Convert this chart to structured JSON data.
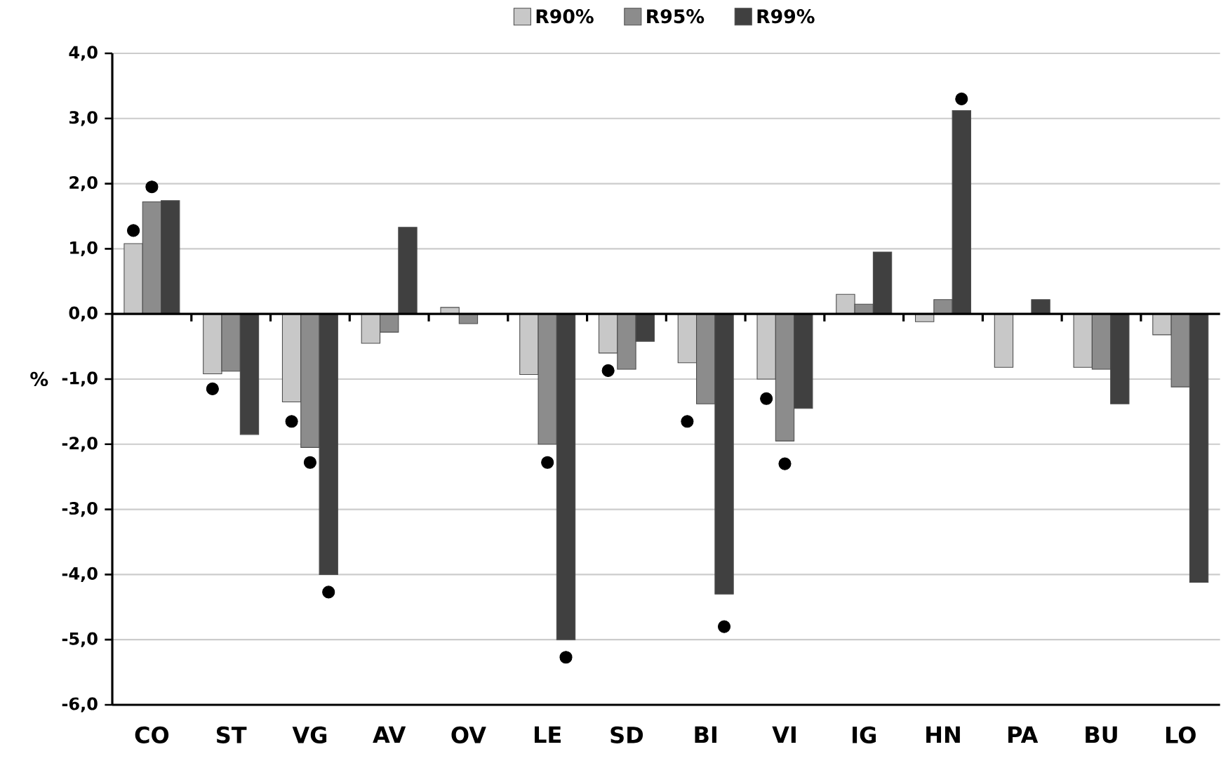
{
  "chart_data": {
    "type": "bar",
    "ylabel": "%",
    "categories": [
      "CO",
      "ST",
      "VG",
      "AV",
      "OV",
      "LE",
      "SD",
      "BI",
      "VI",
      "IG",
      "HN",
      "PA",
      "BU",
      "LO"
    ],
    "series": [
      {
        "name": "R90%",
        "color": "#c8c8c8",
        "values": [
          1.08,
          -0.92,
          -1.35,
          -0.45,
          0.1,
          -0.93,
          -0.6,
          -0.75,
          -1.0,
          0.3,
          -0.12,
          -0.82,
          -0.82,
          -0.32
        ]
      },
      {
        "name": "R95%",
        "color": "#8c8c8c",
        "values": [
          1.72,
          -0.88,
          -2.05,
          -0.28,
          -0.15,
          -2.0,
          -0.85,
          -1.38,
          -1.95,
          0.15,
          0.22,
          null,
          -0.85,
          -1.12
        ]
      },
      {
        "name": "R99%",
        "color": "#404040",
        "values": [
          1.74,
          -1.85,
          -4.0,
          1.33,
          null,
          -5.0,
          -0.42,
          -4.3,
          -1.45,
          0.95,
          3.12,
          0.22,
          -1.38,
          -4.12
        ]
      },
      {
        "type": "scatter",
        "color": "#000000",
        "marker": "circle",
        "values": [
          1.28,
          -1.15,
          -1.65,
          null,
          null,
          null,
          -0.87,
          -1.65,
          -1.3,
          null,
          null,
          null,
          null,
          null
        ]
      },
      {
        "type": "scatter",
        "color": "#000000",
        "marker": "circle",
        "values": [
          1.95,
          null,
          -2.28,
          null,
          null,
          -2.28,
          null,
          null,
          -2.3,
          null,
          null,
          null,
          null,
          null
        ]
      },
      {
        "type": "scatter",
        "color": "#000000",
        "marker": "circle",
        "values": [
          null,
          null,
          -4.27,
          null,
          null,
          -5.27,
          null,
          -4.8,
          null,
          null,
          3.3,
          null,
          null,
          null
        ]
      }
    ],
    "ylim": [
      -6,
      4
    ],
    "yticks": [
      {
        "value": -6,
        "label": "-6,0"
      },
      {
        "value": -5,
        "label": "-5,0"
      },
      {
        "value": -4,
        "label": "-4,0"
      },
      {
        "value": -3,
        "label": "-3,0"
      },
      {
        "value": -2,
        "label": "-2,0"
      },
      {
        "value": -1,
        "label": "-1,0"
      },
      {
        "value": 0,
        "label": "0,0"
      },
      {
        "value": 1,
        "label": "1,0"
      },
      {
        "value": 2,
        "label": "2,0"
      },
      {
        "value": 3,
        "label": "3,0"
      },
      {
        "value": 4,
        "label": "4,0"
      }
    ],
    "grid": "y",
    "legend": "top",
    "ref_lines": [
      {
        "axis": "y",
        "value": 0,
        "color": "#000000"
      }
    ]
  }
}
